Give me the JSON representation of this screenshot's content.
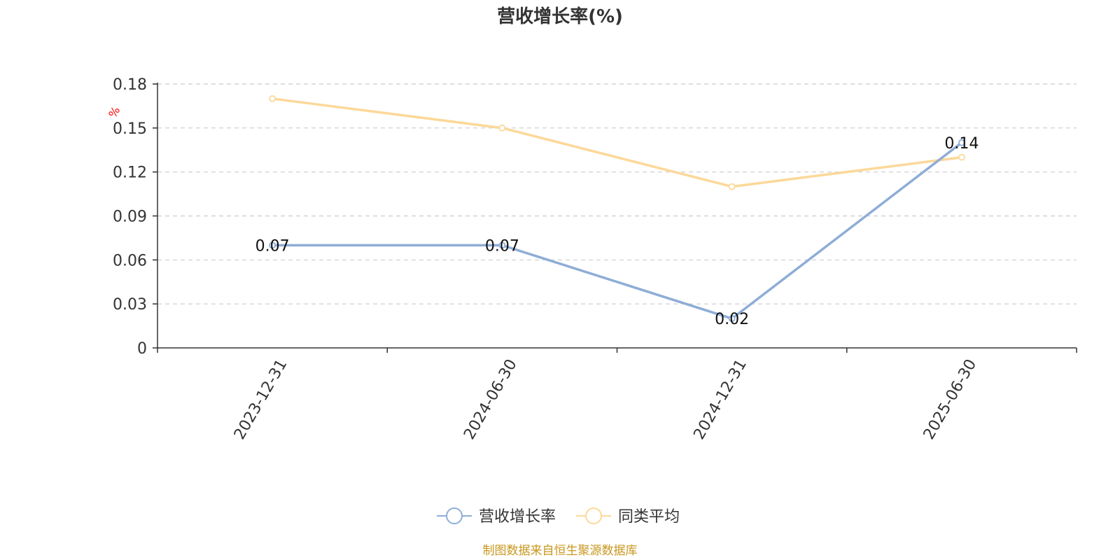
{
  "chart_data": {
    "type": "line",
    "title": "营收增长率(%)",
    "y_unit": "%",
    "x": [
      "2023-12-31",
      "2024-06-30",
      "2024-12-31",
      "2025-06-30"
    ],
    "y_ticks": [
      "0",
      "0.03",
      "0.06",
      "0.09",
      "0.12",
      "0.15",
      "0.18"
    ],
    "ylim": [
      0,
      0.18
    ],
    "grid": true,
    "legend_position": "bottom-center",
    "series": [
      {
        "name": "营收增长率",
        "values": [
          0.07,
          0.07,
          0.02,
          0.14
        ],
        "labels": [
          "0.07",
          "0.07",
          "0.02",
          "0.14"
        ],
        "color": "#8eadd6"
      },
      {
        "name": "同类平均",
        "values": [
          0.17,
          0.15,
          0.11,
          0.13
        ],
        "color": "#fcd899"
      }
    ]
  },
  "footer": {
    "source": "制图数据来自恒生聚源数据库",
    "source_color": "#c8971e"
  }
}
